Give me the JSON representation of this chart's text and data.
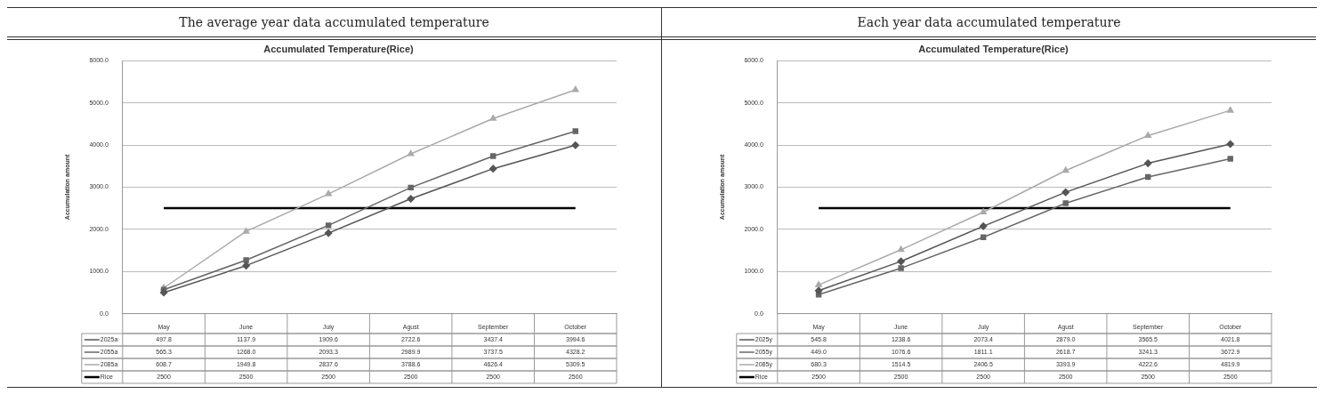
{
  "chart_data": [
    {
      "type": "line",
      "subtitle": "The average year data accumulated temperature",
      "title": "Accumulated Temperature(Rice)",
      "ylabel": "Accumulation amount",
      "categories": [
        "May",
        "June",
        "July",
        "Agust",
        "September",
        "October"
      ],
      "ylim": [
        0,
        6000
      ],
      "yticks": [
        {
          "value": 0,
          "label": "0.0"
        },
        {
          "value": 1000,
          "label": "1000.0"
        },
        {
          "value": 2000,
          "label": "2000.0"
        },
        {
          "value": 3000,
          "label": "3000.0"
        },
        {
          "value": 4000,
          "label": "4000.0"
        },
        {
          "value": 5000,
          "label": "5000.0"
        },
        {
          "value": 6000,
          "label": "6000.0"
        }
      ],
      "grid": "y",
      "legend": "bottom",
      "series": [
        {
          "name": "2025a",
          "color": "#555555",
          "marker": "diamond",
          "values": [
            497.8,
            1137.9,
            1909.6,
            2722.6,
            3437.4,
            3994.6
          ],
          "value_labels": [
            "497.8",
            "1137.9",
            "1909.6",
            "2722.6",
            "3437.4",
            "3994.6"
          ]
        },
        {
          "name": "2055a",
          "color": "#666666",
          "marker": "square",
          "values": [
            565.3,
            1268.0,
            2093.3,
            2989.9,
            3737.5,
            4328.2
          ],
          "value_labels": [
            "565.3",
            "1268.0",
            "2093.3",
            "2989.9",
            "3737.5",
            "4328.2"
          ]
        },
        {
          "name": "2085a",
          "color": "#aaaaaa",
          "marker": "triangle",
          "values": [
            608.7,
            1949.8,
            2837.6,
            3788.6,
            4626.4,
            5309.5
          ],
          "value_labels": [
            "608.7",
            "1949.8",
            "2837.6",
            "3788.6",
            "4626.4",
            "5309.5"
          ]
        },
        {
          "name": "Rice",
          "color": "#000000",
          "marker": "none",
          "values": [
            2500,
            2500,
            2500,
            2500,
            2500,
            2500
          ],
          "value_labels": [
            "2500",
            "2500",
            "2500",
            "2500",
            "2500",
            "2500"
          ]
        }
      ]
    },
    {
      "type": "line",
      "subtitle": "Each year data accumulated temperature",
      "title": "Accumulated Temperature(Rice)",
      "ylabel": "Accumulation amount",
      "categories": [
        "May",
        "June",
        "July",
        "Agust",
        "September",
        "October"
      ],
      "ylim": [
        0,
        6000
      ],
      "yticks": [
        {
          "value": 0,
          "label": "0.0"
        },
        {
          "value": 1000,
          "label": "1000.0"
        },
        {
          "value": 2000,
          "label": "2000.0"
        },
        {
          "value": 3000,
          "label": "3000.0"
        },
        {
          "value": 4000,
          "label": "4000.0"
        },
        {
          "value": 5000,
          "label": "5000.0"
        },
        {
          "value": 6000,
          "label": "6000.0"
        }
      ],
      "grid": "y",
      "legend": "bottom",
      "series": [
        {
          "name": "2025y",
          "color": "#555555",
          "marker": "diamond",
          "values": [
            545.8,
            1238.6,
            2073.4,
            2879.0,
            3565.5,
            4021.8
          ],
          "value_labels": [
            "545.8",
            "1238.6",
            "2073.4",
            "2879.0",
            "3565.5",
            "4021.8"
          ]
        },
        {
          "name": "2055y",
          "color": "#666666",
          "marker": "square",
          "values": [
            449.0,
            1076.6,
            1811.1,
            2618.7,
            3241.3,
            3672.9
          ],
          "value_labels": [
            "449.0",
            "1076.6",
            "1811.1",
            "2618.7",
            "3241.3",
            "3672.9"
          ]
        },
        {
          "name": "2085y",
          "color": "#aaaaaa",
          "marker": "triangle",
          "values": [
            680.3,
            1514.5,
            2406.5,
            3393.9,
            4222.6,
            4819.9
          ],
          "value_labels": [
            "680.3",
            "1514.5",
            "2406.5",
            "3393.9",
            "4222.6",
            "4819.9"
          ]
        },
        {
          "name": "Rice",
          "color": "#000000",
          "marker": "none",
          "values": [
            2500,
            2500,
            2500,
            2500,
            2500,
            2500
          ],
          "value_labels": [
            "2500",
            "2500",
            "2500",
            "2500",
            "2500",
            "2500"
          ]
        }
      ]
    }
  ]
}
